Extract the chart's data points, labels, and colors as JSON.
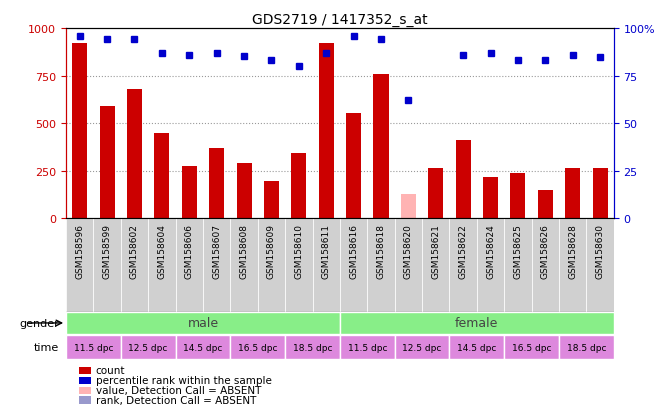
{
  "title": "GDS2719 / 1417352_s_at",
  "samples": [
    "GSM158596",
    "GSM158599",
    "GSM158602",
    "GSM158604",
    "GSM158606",
    "GSM158607",
    "GSM158608",
    "GSM158609",
    "GSM158610",
    "GSM158611",
    "GSM158616",
    "GSM158618",
    "GSM158620",
    "GSM158621",
    "GSM158622",
    "GSM158624",
    "GSM158625",
    "GSM158626",
    "GSM158628",
    "GSM158630"
  ],
  "bar_values": [
    920,
    590,
    680,
    450,
    275,
    370,
    290,
    195,
    345,
    920,
    555,
    760,
    130,
    265,
    410,
    215,
    240,
    150,
    265,
    265
  ],
  "bar_absent": [
    false,
    false,
    false,
    false,
    false,
    false,
    false,
    false,
    false,
    false,
    false,
    false,
    true,
    false,
    false,
    false,
    false,
    false,
    false,
    false
  ],
  "bar_color_normal": "#cc0000",
  "bar_color_absent": "#ffb3b3",
  "percentile_values": [
    960,
    940,
    940,
    870,
    860,
    870,
    855,
    830,
    800,
    870,
    960,
    940,
    620,
    -1,
    860,
    870,
    830,
    830,
    860,
    850
  ],
  "percentile_absent": [
    false,
    false,
    false,
    false,
    false,
    false,
    false,
    false,
    false,
    false,
    false,
    false,
    false,
    true,
    false,
    false,
    false,
    false,
    false,
    false
  ],
  "percentile_color_normal": "#0000cc",
  "percentile_color_absent": "#9999cc",
  "ylim_left": [
    0,
    1000
  ],
  "ylim_right": [
    0,
    100
  ],
  "yticks_left": [
    0,
    250,
    500,
    750,
    1000
  ],
  "yticks_right": [
    0,
    25,
    50,
    75,
    100
  ],
  "ytick_right_labels": [
    "0",
    "25",
    "50",
    "75",
    "100%"
  ],
  "gender_color": "#88ee88",
  "time_color": "#dd88dd",
  "time_labels": [
    "11.5 dpc",
    "12.5 dpc",
    "14.5 dpc",
    "16.5 dpc",
    "18.5 dpc",
    "11.5 dpc",
    "12.5 dpc",
    "14.5 dpc",
    "16.5 dpc",
    "18.5 dpc"
  ],
  "legend_items": [
    {
      "label": "count",
      "color": "#cc0000"
    },
    {
      "label": "percentile rank within the sample",
      "color": "#0000cc"
    },
    {
      "label": "value, Detection Call = ABSENT",
      "color": "#ffb3b3"
    },
    {
      "label": "rank, Detection Call = ABSENT",
      "color": "#9999cc"
    }
  ]
}
